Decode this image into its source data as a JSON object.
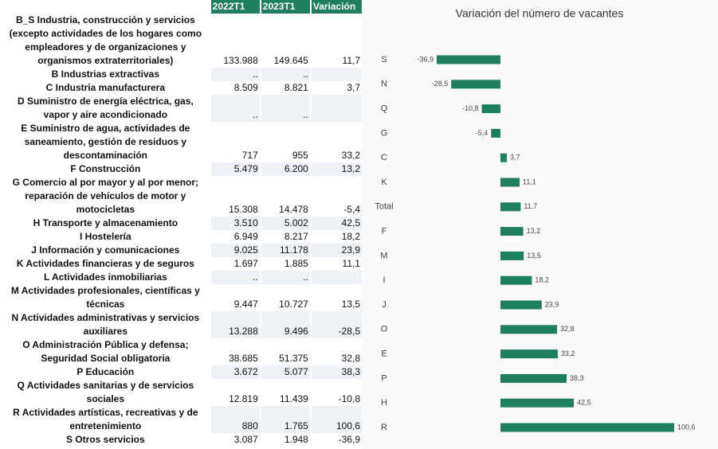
{
  "table": {
    "header": [
      "2022T1",
      "2023T1",
      "Variación"
    ],
    "rows": [
      [
        "B_S Industria, construcción y servicios (excepto actividades de los hogares como empleadores y de organizaciones y organismos extraterritoriales)",
        "133.988",
        "149.645",
        "11,7"
      ],
      [
        "B Industrias extractivas",
        "..",
        ".."
      ],
      [
        "C Industria manufacturera",
        "8.509",
        "8.821",
        "3,7"
      ],
      [
        "D Suministro de energía eléctrica, gas, vapor y aire acondicionado",
        "..",
        ".."
      ],
      [
        "E Suministro de agua, actividades de saneamiento, gestión de residuos y descontaminación",
        "717",
        "955",
        "33,2"
      ],
      [
        "F Construcción",
        "5.479",
        "6.200",
        "13,2"
      ],
      [
        "G Comercio al por mayor y al por menor; reparación de vehículos de motor y motocicletas",
        "15.308",
        "14.478",
        "-5,4"
      ],
      [
        "H Transporte y almacenamiento",
        "3.510",
        "5.002",
        "42,5"
      ],
      [
        "I Hostelería",
        "6.949",
        "8.217",
        "18,2"
      ],
      [
        "J Información y comunicaciones",
        "9.025",
        "11.178",
        "23,9"
      ],
      [
        "K Actividades financieras y de seguros",
        "1.697",
        "1.885",
        "11,1"
      ],
      [
        "L Actividades inmobiliarias",
        "..",
        ".."
      ],
      [
        "M Actividades profesionales, científicas y técnicas",
        "9.447",
        "10.727",
        "13,5"
      ],
      [
        "N Actividades administrativas y servicios auxiliares",
        "13.288",
        "9.496",
        "-28,5"
      ],
      [
        "O Administración Pública y defensa; Seguridad Social obligatoria",
        "38.685",
        "51.375",
        "32,8"
      ],
      [
        "P Educación",
        "3.672",
        "5.077",
        "38,3"
      ],
      [
        "Q Actividades sanitarias y de servicios sociales",
        "12.819",
        "11.439",
        "-10,8"
      ],
      [
        "R Actividades artísticas, recreativas y de entretenimiento",
        "880",
        "1.765",
        "100,6"
      ],
      [
        "S Otros servicios",
        "3.087",
        "1.948",
        "-36,9"
      ]
    ]
  },
  "chart_data": {
    "type": "bar",
    "orientation": "horizontal",
    "title": "Variación del número de vacantes",
    "categories": [
      "S",
      "N",
      "Q",
      "G",
      "C",
      "K",
      "Total",
      "F",
      "M",
      "I",
      "J",
      "O",
      "E",
      "P",
      "H",
      "R"
    ],
    "values": [
      -36.9,
      -28.5,
      -10.8,
      -5.4,
      3.7,
      11.1,
      11.7,
      13.2,
      13.5,
      18.2,
      23.9,
      32.8,
      33.2,
      38.3,
      42.5,
      100.6
    ],
    "value_labels": [
      "-36,9",
      "-28,5",
      "-10,8",
      "-5,4",
      "3,7",
      "11,1",
      "11,7",
      "13,2",
      "13,5",
      "18,2",
      "23,9",
      "32,8",
      "33,2",
      "38,3",
      "42,5",
      "100,6"
    ],
    "color": "#1e7f5c"
  }
}
